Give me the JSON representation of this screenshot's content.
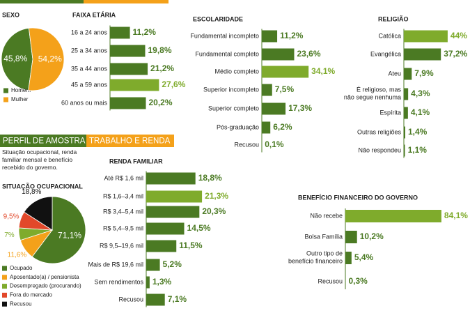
{
  "section": {
    "title": "PERFIL DE AMOSTRA",
    "subtitle": "TRABALHO E RENDA",
    "description": "Situação ocupacional, renda\nfamiliar mensal e benefício\nrecebido do governo."
  },
  "chart_data": [
    {
      "type": "pie",
      "title": "SEXO",
      "categories": [
        "Homem",
        "Mulher"
      ],
      "values": [
        45.8,
        54.2
      ],
      "value_labels": [
        "45,8%",
        "54,2%"
      ],
      "colors": [
        "#4b7a23",
        "#f4a11a"
      ]
    },
    {
      "type": "bar",
      "title": "FAIXA ETÁRIA",
      "categories": [
        "16 a 24 anos",
        "25 a 34 anos",
        "35 a 44 anos",
        "45 a 59 anos",
        "60 anos ou mais"
      ],
      "values": [
        11.2,
        19.8,
        21.2,
        27.6,
        20.2
      ],
      "value_labels": [
        "11,2%",
        "19,8%",
        "21,2%",
        "27,6%",
        "20,2%"
      ],
      "colors": [
        "#4b7a23",
        "#4b7a23",
        "#4b7a23",
        "#7fab2c",
        "#4b7a23"
      ]
    },
    {
      "type": "bar",
      "title": "ESCOLARIDADE",
      "categories": [
        "Fundamental incompleto",
        "Fundamental completo",
        "Médio completo",
        "Superior incompleto",
        "Superior completo",
        "Pós-graduação",
        "Recusou"
      ],
      "values": [
        11.2,
        23.6,
        34.1,
        7.5,
        17.3,
        6.2,
        0.1
      ],
      "value_labels": [
        "11,2%",
        "23,6%",
        "34,1%",
        "7,5%",
        "17,3%",
        "6,2%",
        "0,1%"
      ],
      "colors": [
        "#4b7a23",
        "#4b7a23",
        "#7fab2c",
        "#4b7a23",
        "#4b7a23",
        "#4b7a23",
        "#4b7a23"
      ]
    },
    {
      "type": "bar",
      "title": "RELIGIÃO",
      "categories": [
        "Católica",
        "Evangélica",
        "Ateu",
        "É religioso, mas\nnão segue nenhuma",
        "Espírita",
        "Outras religiões",
        "Não respondeu"
      ],
      "values": [
        44,
        37.2,
        7.9,
        4.3,
        4.1,
        1.4,
        1.1
      ],
      "value_labels": [
        "44%",
        "37,2%",
        "7,9%",
        "4,3%",
        "4,1%",
        "1,4%",
        "1,1%"
      ],
      "colors": [
        "#7fab2c",
        "#4b7a23",
        "#4b7a23",
        "#4b7a23",
        "#4b7a23",
        "#4b7a23",
        "#4b7a23"
      ]
    },
    {
      "type": "pie",
      "title": "SITUAÇÃO OCUPACIONAL",
      "categories": [
        "Ocupado",
        "Aposentado(a) / pensionista",
        "Desempregado (procurando)",
        "Fora do mercado",
        "Recusou"
      ],
      "values": [
        71.1,
        11.6,
        7,
        9.5,
        18.8
      ],
      "value_labels": [
        "71,1%",
        "11,6%",
        "7%",
        "9,5%",
        "18,8%"
      ],
      "colors": [
        "#4b7a23",
        "#f4a11a",
        "#7fab2c",
        "#e2482a",
        "#111111"
      ]
    },
    {
      "type": "bar",
      "title": "RENDA FAMILIAR",
      "categories": [
        "Até R$ 1,6 mil",
        "R$ 1,6–3,4 mil",
        "R$ 3,4–5,4 mil",
        "R$ 5,4–9,5 mil",
        "R$ 9,5–19,6 mil",
        "Mais de R$ 19,6 mil",
        "Sem rendimentos",
        "Recusou"
      ],
      "values": [
        18.8,
        21.3,
        20.3,
        14.5,
        11.5,
        5.2,
        1.3,
        7.1
      ],
      "value_labels": [
        "18,8%",
        "21,3%",
        "20,3%",
        "14,5%",
        "11,5%",
        "5,2%",
        "1,3%",
        "7,1%"
      ],
      "colors": [
        "#4b7a23",
        "#7fab2c",
        "#4b7a23",
        "#4b7a23",
        "#4b7a23",
        "#4b7a23",
        "#4b7a23",
        "#4b7a23"
      ]
    },
    {
      "type": "bar",
      "title": "BENEFÍCIO FINANCEIRO DO GOVERNO",
      "categories": [
        "Não recebe",
        "Bolsa Família",
        "Outro tipo de\nbenefício financeiro",
        "Recusou"
      ],
      "values": [
        84.1,
        10.2,
        5.4,
        0.3
      ],
      "value_labels": [
        "84,1%",
        "10,2%",
        "5,4%",
        "0,3%"
      ],
      "colors": [
        "#7fab2c",
        "#4b7a23",
        "#4b7a23",
        "#4b7a23"
      ]
    }
  ]
}
